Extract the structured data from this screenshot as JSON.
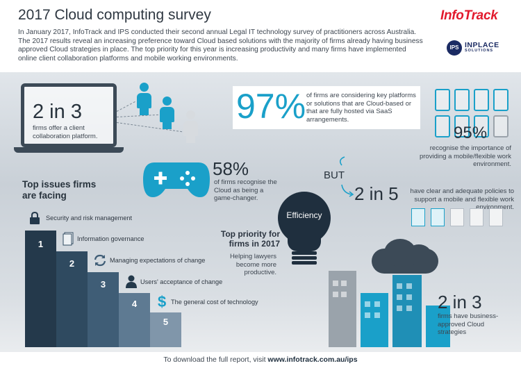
{
  "header": {
    "title": "2017 Cloud computing survey",
    "intro": "In January 2017, InfoTrack and IPS conducted their second annual Legal IT technology survey of practitioners across Australia. The 2017 results reveal an increasing preference toward Cloud based solutions with the majority of firms already having business approved Cloud strategies in place. The top priority for this year is increasing productivity and many firms have implemented online client collaboration platforms and mobile working environments.",
    "logo_infotrack": "InfoTrack",
    "logo_ips_badge": "IPS",
    "logo_ips_name": "INPLACE",
    "logo_ips_sub": "SOLUTIONS"
  },
  "stats": {
    "collab": {
      "value": "2 in 3",
      "text": "firms offer a client collaboration platform."
    },
    "cloud": {
      "value": "97%",
      "text": "of firms are considering key platforms or solutions that are Cloud-based or that are fully hosted via SaaS arrangements."
    },
    "mobile": {
      "value": "95%",
      "text": "recognise the importance of providing a mobile/flexible work environment."
    },
    "gamechanger": {
      "value": "58%",
      "text": "of firms recognise the Cloud as being a game-changer."
    },
    "but": "BUT",
    "policies": {
      "value": "2 in 5",
      "text": "have clear and adequate policies to support a mobile and flexible work environment."
    },
    "strategy": {
      "value": "2 in 3",
      "text": "firms have business-approved Cloud strategies"
    }
  },
  "issues": {
    "title_line1": "Top issues firms",
    "title_line2": "are facing",
    "items": [
      {
        "rank": "1",
        "label": "Security and risk management",
        "icon": "lock-icon",
        "color": "#24394b"
      },
      {
        "rank": "2",
        "label": "Information governance",
        "icon": "document-icon",
        "color": "#2f4a60"
      },
      {
        "rank": "3",
        "label": "Managing expectations of change",
        "icon": "refresh-icon",
        "color": "#3f5d76"
      },
      {
        "rank": "4",
        "label": "Users' acceptance of change",
        "icon": "user-icon",
        "color": "#5e7a92"
      },
      {
        "rank": "5",
        "label": "The general cost of technology",
        "icon": "dollar-icon",
        "color": "#8096aa"
      }
    ]
  },
  "priority": {
    "bulb_label": "Efficiency",
    "title_line1": "Top priority for",
    "title_line2": "firms in 2017",
    "text": "Helping lawyers become more productive."
  },
  "footer": {
    "prefix": "To download the full report, visit ",
    "link": "www.infotrack.com.au/ips"
  },
  "colors": {
    "accent": "#1aa0c9",
    "dark": "#24394b",
    "brand_red": "#e2192c",
    "ips_navy": "#1b2b63"
  }
}
